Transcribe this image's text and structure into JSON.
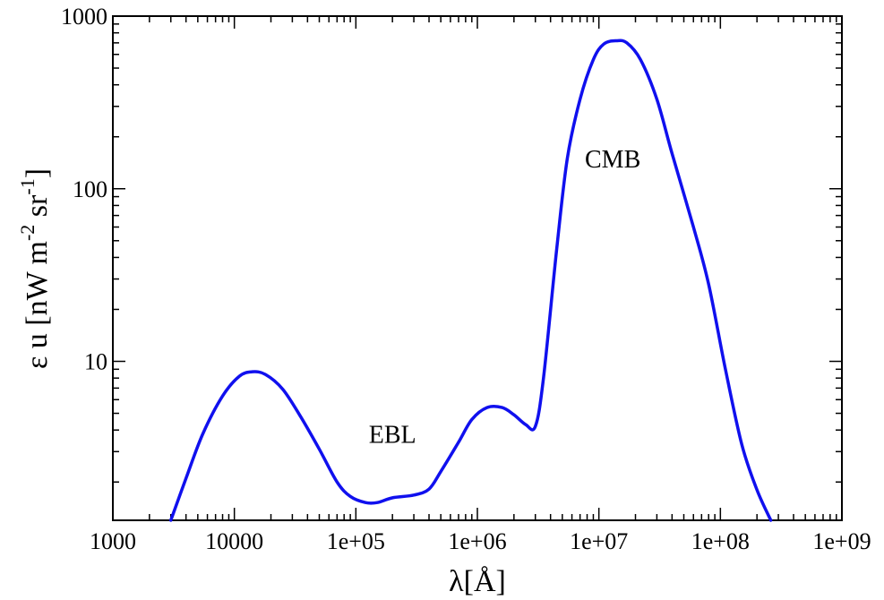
{
  "chart_data": {
    "type": "line",
    "title": "",
    "xlabel": "λ[Å]",
    "ylabel_main": "ε u [nW m",
    "ylabel_exp1": "-2",
    "ylabel_mid": " sr",
    "ylabel_exp2": "-1",
    "ylabel_end": "]",
    "xscale": "log",
    "yscale": "log",
    "xlim": [
      1000,
      1000000000
    ],
    "ylim": [
      1.2,
      1000
    ],
    "grid": false,
    "legend": "none",
    "x_tick_labels": [
      "1000",
      "10000",
      "1e+05",
      "1e+06",
      "1e+07",
      "1e+08",
      "1e+09"
    ],
    "x_tick_values": [
      1000,
      10000,
      100000,
      1000000,
      10000000,
      100000000,
      1000000000
    ],
    "y_tick_labels": [
      "10",
      "100",
      "1000"
    ],
    "y_tick_values": [
      10,
      100,
      1000
    ],
    "line_color": "#1010ee",
    "annotations": [
      {
        "text": "EBL",
        "x": 200000,
        "y": 3.8
      },
      {
        "text": "CMB",
        "x": 13000000,
        "y": 150
      }
    ],
    "series": [
      {
        "x": [
          3000,
          4000,
          5500,
          8000,
          11000,
          14000,
          18000,
          25000,
          35000,
          50000,
          70000,
          90000,
          120000,
          150000,
          200000,
          300000,
          400000,
          500000,
          700000,
          900000,
          1200000,
          1600000,
          2000000,
          2500000,
          3000000,
          3500000,
          4500000,
          5500000,
          7000000,
          9000000,
          11000000,
          14000000,
          17000000,
          22000000,
          30000000,
          40000000,
          60000000,
          80000000,
          110000000,
          150000000,
          200000000,
          260000000
        ],
        "y": [
          1.2,
          2.1,
          3.8,
          6.3,
          8.2,
          8.7,
          8.4,
          6.9,
          4.8,
          3.1,
          2.0,
          1.65,
          1.52,
          1.52,
          1.62,
          1.68,
          1.82,
          2.3,
          3.4,
          4.6,
          5.4,
          5.4,
          4.9,
          4.3,
          4.2,
          8.0,
          45,
          150,
          330,
          560,
          690,
          720,
          700,
          560,
          330,
          160,
          60,
          28,
          9.0,
          3.3,
          1.8,
          1.2
        ]
      }
    ]
  }
}
